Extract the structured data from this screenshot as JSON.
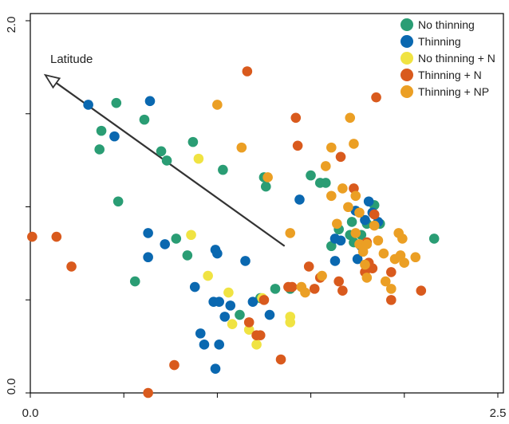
{
  "chart_data": {
    "type": "scatter",
    "title": "",
    "xlabel": "",
    "ylabel": "",
    "xlim": [
      0.0,
      2.5
    ],
    "ylim": [
      0.0,
      2.0
    ],
    "x_tick_labels": [
      "0.0",
      "2.5"
    ],
    "y_tick_labels": [
      "0.0",
      "2.0"
    ],
    "grid": false,
    "legend_position": "top-right",
    "arrow": {
      "label": "Latitude",
      "from": [
        1.36,
        0.79
      ],
      "to": [
        0.08,
        1.71
      ]
    },
    "series": [
      {
        "name": "No thinning",
        "color": "#2a9d74",
        "points": [
          [
            0.38,
            1.41
          ],
          [
            0.46,
            1.56
          ],
          [
            0.61,
            1.47
          ],
          [
            0.37,
            1.31
          ],
          [
            0.47,
            1.03
          ],
          [
            0.7,
            1.3
          ],
          [
            0.73,
            1.25
          ],
          [
            0.87,
            1.35
          ],
          [
            1.03,
            1.2
          ],
          [
            1.25,
            1.16
          ],
          [
            1.26,
            1.11
          ],
          [
            0.56,
            0.6
          ],
          [
            0.78,
            0.83
          ],
          [
            0.84,
            0.74
          ],
          [
            1.12,
            0.42
          ],
          [
            1.23,
            0.51
          ],
          [
            1.31,
            0.56
          ],
          [
            1.39,
            0.56
          ],
          [
            1.5,
            1.17
          ],
          [
            1.55,
            1.13
          ],
          [
            1.58,
            1.13
          ],
          [
            1.61,
            0.79
          ],
          [
            1.65,
            0.88
          ],
          [
            1.71,
            0.85
          ],
          [
            1.73,
            0.81
          ],
          [
            1.72,
            0.92
          ],
          [
            1.77,
            0.85
          ],
          [
            1.8,
            0.91
          ],
          [
            1.84,
            1.01
          ],
          [
            1.87,
            0.91
          ],
          [
            2.16,
            0.83
          ]
        ]
      },
      {
        "name": "Thinning",
        "color": "#0a68b0",
        "points": [
          [
            0.31,
            1.55
          ],
          [
            0.45,
            1.38
          ],
          [
            0.64,
            1.57
          ],
          [
            0.63,
            0.86
          ],
          [
            0.63,
            0.73
          ],
          [
            0.72,
            0.8
          ],
          [
            0.88,
            0.57
          ],
          [
            0.91,
            0.32
          ],
          [
            0.93,
            0.26
          ],
          [
            0.98,
            0.49
          ],
          [
            0.99,
            0.77
          ],
          [
            1.0,
            0.75
          ],
          [
            1.01,
            0.49
          ],
          [
            1.01,
            0.26
          ],
          [
            0.99,
            0.13
          ],
          [
            1.04,
            0.41
          ],
          [
            1.07,
            0.47
          ],
          [
            1.15,
            0.71
          ],
          [
            1.19,
            0.49
          ],
          [
            1.28,
            0.42
          ],
          [
            1.44,
            1.04
          ],
          [
            1.63,
            0.83
          ],
          [
            1.63,
            0.71
          ],
          [
            1.66,
            0.82
          ],
          [
            1.74,
            0.98
          ],
          [
            1.75,
            0.72
          ],
          [
            1.77,
            0.79
          ],
          [
            1.79,
            0.93
          ],
          [
            1.81,
            1.03
          ],
          [
            1.83,
            0.97
          ],
          [
            1.86,
            0.92
          ]
        ]
      },
      {
        "name": "No thinning + N",
        "color": "#f0e342",
        "points": [
          [
            0.86,
            0.85
          ],
          [
            0.9,
            1.26
          ],
          [
            0.95,
            0.63
          ],
          [
            1.06,
            0.54
          ],
          [
            1.08,
            0.37
          ],
          [
            1.17,
            0.34
          ],
          [
            1.21,
            0.26
          ],
          [
            1.24,
            0.51
          ],
          [
            1.39,
            0.38
          ],
          [
            1.39,
            0.41
          ]
        ]
      },
      {
        "name": "Thinning + N",
        "color": "#d95a1d",
        "points": [
          [
            0.01,
            0.84
          ],
          [
            0.14,
            0.84
          ],
          [
            0.22,
            0.68
          ],
          [
            0.63,
            0.0
          ],
          [
            0.77,
            0.15
          ],
          [
            1.16,
            1.73
          ],
          [
            1.17,
            0.38
          ],
          [
            1.21,
            0.31
          ],
          [
            1.23,
            0.31
          ],
          [
            1.25,
            0.5
          ],
          [
            1.34,
            0.18
          ],
          [
            1.38,
            0.57
          ],
          [
            1.4,
            0.57
          ],
          [
            1.42,
            1.48
          ],
          [
            1.43,
            1.33
          ],
          [
            1.49,
            0.68
          ],
          [
            1.52,
            0.56
          ],
          [
            1.55,
            0.62
          ],
          [
            1.65,
            0.6
          ],
          [
            1.66,
            1.27
          ],
          [
            1.67,
            0.55
          ],
          [
            1.73,
            1.1
          ],
          [
            1.79,
            0.65
          ],
          [
            1.8,
            0.81
          ],
          [
            1.81,
            0.7
          ],
          [
            1.83,
            0.67
          ],
          [
            1.84,
            0.96
          ],
          [
            1.85,
            1.59
          ],
          [
            1.93,
            0.65
          ],
          [
            1.93,
            0.5
          ],
          [
            2.09,
            0.55
          ]
        ]
      },
      {
        "name": "Thinning + NP",
        "color": "#eb9f24",
        "points": [
          [
            1.0,
            1.55
          ],
          [
            1.13,
            1.32
          ],
          [
            1.27,
            1.16
          ],
          [
            1.39,
            0.86
          ],
          [
            1.45,
            0.57
          ],
          [
            1.47,
            0.54
          ],
          [
            1.56,
            0.63
          ],
          [
            1.58,
            1.22
          ],
          [
            1.61,
            1.06
          ],
          [
            1.61,
            1.32
          ],
          [
            1.64,
            0.91
          ],
          [
            1.67,
            1.1
          ],
          [
            1.7,
            1.0
          ],
          [
            1.71,
            1.48
          ],
          [
            1.73,
            1.34
          ],
          [
            1.74,
            1.06
          ],
          [
            1.74,
            0.86
          ],
          [
            1.76,
            0.97
          ],
          [
            1.76,
            0.8
          ],
          [
            1.78,
            0.76
          ],
          [
            1.79,
            0.69
          ],
          [
            1.8,
            0.8
          ],
          [
            1.8,
            0.62
          ],
          [
            1.84,
            0.9
          ],
          [
            1.86,
            0.82
          ],
          [
            1.89,
            0.75
          ],
          [
            1.9,
            0.6
          ],
          [
            1.93,
            0.56
          ],
          [
            1.95,
            0.72
          ],
          [
            1.97,
            0.86
          ],
          [
            1.98,
            0.74
          ],
          [
            1.99,
            0.83
          ],
          [
            2.0,
            0.7
          ],
          [
            2.06,
            0.73
          ]
        ]
      }
    ]
  }
}
